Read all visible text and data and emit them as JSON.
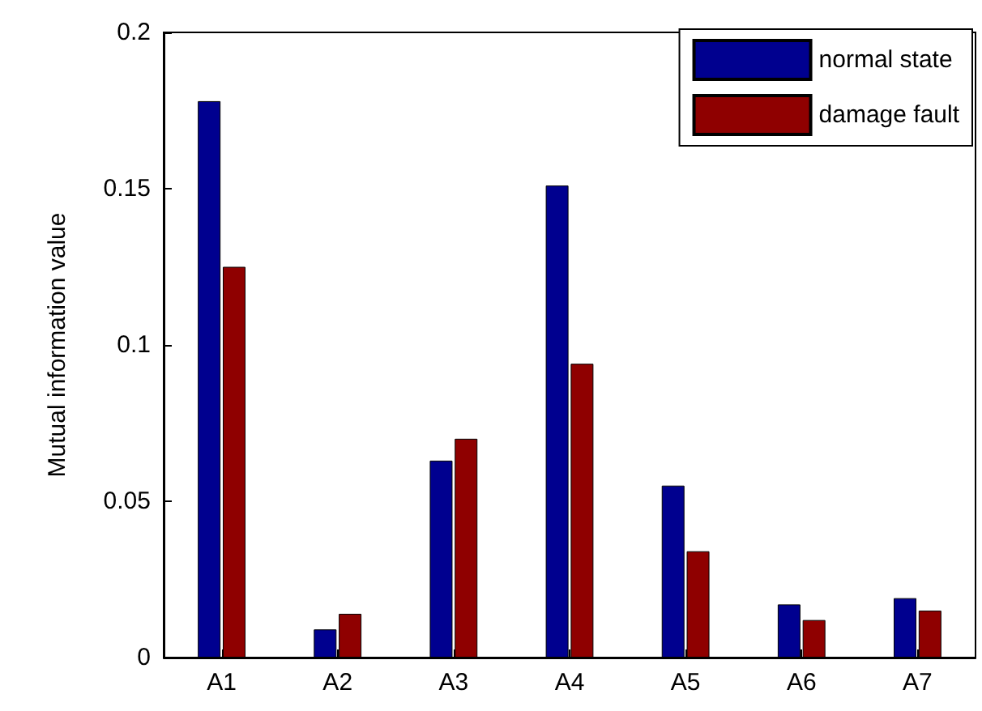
{
  "chart_data": {
    "type": "bar",
    "ylabel": "Mutual information value",
    "categories": [
      "A1",
      "A2",
      "A3",
      "A4",
      "A5",
      "A6",
      "A7"
    ],
    "series": [
      {
        "name": "normal state",
        "color": "#00008f",
        "values": [
          0.178,
          0.009,
          0.063,
          0.151,
          0.055,
          0.017,
          0.019
        ]
      },
      {
        "name": "damage fault",
        "color": "#8f0000",
        "values": [
          0.125,
          0.014,
          0.07,
          0.094,
          0.034,
          0.012,
          0.015
        ]
      }
    ],
    "ylim": [
      0,
      0.2
    ],
    "yticks": [
      0,
      0.05,
      0.1,
      0.15,
      0.2
    ],
    "grid": false,
    "legend": "top right"
  }
}
